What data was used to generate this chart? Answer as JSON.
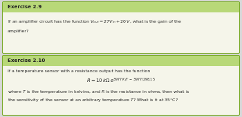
{
  "bg_color": "#f5f5ea",
  "border_color": "#7aaa2a",
  "title_bar_color": "#b8d878",
  "box1_title": "Exercise 2.9",
  "box1_line1": "If an amplifier circuit has the function $V_{out} = 27V_{in} + 20\\,V$, what is the gain of the",
  "box1_line2": "amplifier?",
  "box2_title": "Exercise 2.10",
  "box2_line1": "If a temperature sensor with a resistance output has the function",
  "box2_formula": "$R = 10\\,k\\Omega\\, e^{3977\\,K/T\\,-\\,3977/298.15}$",
  "box2_line2": "where $T$ is the temperature in kelvins, and $R$ is the resistance in ohms, then what is",
  "box2_line3": "the sensitivity of the sensor at an arbitrary temperature $T$? What is it at 35°C?",
  "outer_bg": "#d8d8d8",
  "title_fontsize": 5.2,
  "body_fontsize": 4.5,
  "formula_fontsize": 5.0
}
